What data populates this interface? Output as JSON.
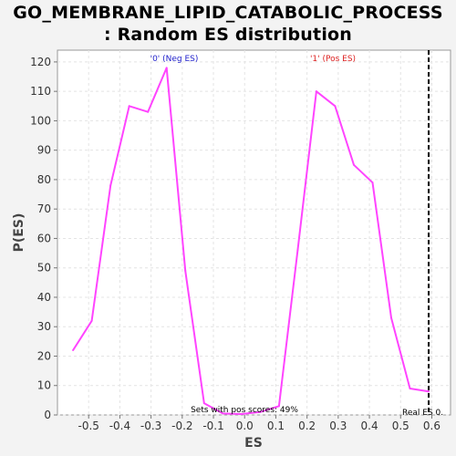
{
  "chart_data": {
    "type": "line",
    "title_line1": "GO_MEMBRANE_LIPID_CATABOLIC_PROCESS",
    "title_line2": ": Random ES distribution",
    "xlabel": "ES",
    "ylabel": "P(ES)",
    "xlim": [
      -0.6,
      0.66
    ],
    "ylim": [
      0,
      124
    ],
    "x_ticks": [
      "-0.5",
      "-0.4",
      "-0.3",
      "-0.2",
      "-0.1",
      "0.0",
      "0.1",
      "0.2",
      "0.3",
      "0.4",
      "0.5",
      "0.6"
    ],
    "y_ticks": [
      "0",
      "10",
      "20",
      "30",
      "40",
      "50",
      "60",
      "70",
      "80",
      "90",
      "100",
      "110",
      "120"
    ],
    "grid": true,
    "series": [
      {
        "color": "#ff44ff",
        "x": [
          -0.55,
          -0.49,
          -0.43,
          -0.37,
          -0.31,
          -0.25,
          -0.19,
          -0.13,
          -0.07,
          -0.01,
          0.05,
          0.11,
          0.17,
          0.23,
          0.29,
          0.35,
          0.41,
          0.47,
          0.53,
          0.59
        ],
        "y": [
          22,
          32,
          78,
          105,
          103,
          118,
          49,
          4,
          0.5,
          0.3,
          1,
          3,
          56,
          110,
          105,
          85,
          79,
          33,
          9,
          8
        ]
      }
    ],
    "neg_label": "'0' (Neg ES)",
    "pos_label": "'1' (Pos ES)",
    "neg_color": "#2222cc",
    "pos_color": "#dd2222",
    "real_es": 0.59,
    "real_es_label": "Real ES 0.",
    "pos_scores_text": "Sets with pos scores: 49%"
  }
}
